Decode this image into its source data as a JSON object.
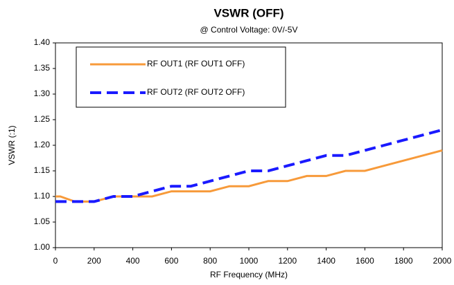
{
  "chart_data": {
    "type": "line",
    "title": "VSWR (OFF)",
    "subtitle": "@ Control Voltage: 0V/-5V",
    "x_label": "RF Frequency (MHz)",
    "y_label": "VSWR (:1)",
    "x": [
      0,
      25,
      100,
      200,
      300,
      400,
      500,
      600,
      700,
      800,
      900,
      1000,
      1100,
      1200,
      1300,
      1400,
      1500,
      1600,
      1700,
      1800,
      1900,
      2000
    ],
    "series": [
      {
        "name": "RF OUT1 (RF OUT1 OFF)",
        "color": "#f79a3a",
        "dash": "solid",
        "values": [
          1.1,
          1.1,
          1.09,
          1.09,
          1.1,
          1.1,
          1.1,
          1.11,
          1.11,
          1.11,
          1.12,
          1.12,
          1.13,
          1.13,
          1.14,
          1.14,
          1.15,
          1.15,
          1.16,
          1.17,
          1.18,
          1.19
        ]
      },
      {
        "name": "RF OUT2 (RF OUT2 OFF)",
        "color": "#1a1aff",
        "dash": "dashed",
        "values": [
          1.09,
          1.09,
          1.09,
          1.09,
          1.1,
          1.1,
          1.11,
          1.12,
          1.12,
          1.13,
          1.14,
          1.15,
          1.15,
          1.16,
          1.17,
          1.18,
          1.18,
          1.19,
          1.2,
          1.21,
          1.22,
          1.23
        ]
      }
    ],
    "xlim": [
      0,
      2000
    ],
    "xticks": [
      0,
      200,
      400,
      600,
      800,
      1000,
      1200,
      1400,
      1600,
      1800,
      2000
    ],
    "ylim": [
      1.0,
      1.4
    ],
    "yticks": [
      {
        "value": 1.0,
        "label": "1.00"
      },
      {
        "value": 1.05,
        "label": "1.05"
      },
      {
        "value": 1.1,
        "label": "1.10"
      },
      {
        "value": 1.15,
        "label": "1.15"
      },
      {
        "value": 1.2,
        "label": "1.20"
      },
      {
        "value": 1.25,
        "label": "1.25"
      },
      {
        "value": 1.3,
        "label": "1.30"
      },
      {
        "value": 1.35,
        "label": "1.35"
      },
      {
        "value": 1.4,
        "label": "1.40"
      }
    ],
    "grid": false,
    "legend": "upper left"
  }
}
